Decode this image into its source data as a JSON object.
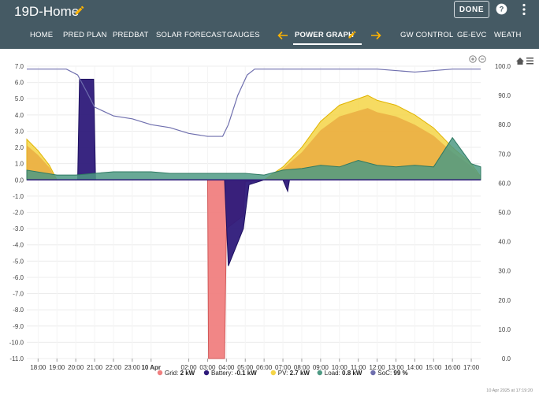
{
  "app": {
    "title": "19D-Home",
    "done_label": "DONE"
  },
  "tabs": [
    "HOME",
    "PRED PLAN",
    "PREDBAT",
    "SOLAR FORECAST",
    "GAUGES",
    "POWER GRAPH",
    "GW CONTROL",
    "GE-EVC",
    "WEATH"
  ],
  "active_tab": "POWER GRAPH",
  "icons": {
    "title_edit": "pencil-icon",
    "help": "help-circle-icon",
    "menu": "more-vert-icon",
    "tab_prev": "arrow-left-icon",
    "tab_next": "arrow-right-icon",
    "zoom_in": "zoom-in-icon",
    "zoom_out": "zoom-out-icon",
    "reset": "home-icon",
    "chart_menu": "hamburger-icon"
  },
  "colors": {
    "header_bg": "#455a64",
    "tab_accent": "#ffb300",
    "grid": "#f08080",
    "battery": "#2e1a7a",
    "pv": "#f5d547",
    "pv_dark": "#e8a43c",
    "load": "#4e9a84",
    "soc": "#6f6fae"
  },
  "chart_data": {
    "type": "area",
    "x_tick_labels": [
      "18:00",
      "19:00",
      "20:00",
      "21:00",
      "22:00",
      "23:00",
      "10 Apr",
      "02:00",
      "03:00",
      "04:00",
      "05:00",
      "06:00",
      "07:00",
      "08:00",
      "09:00",
      "10:00",
      "11:00",
      "12:00",
      "13:00",
      "14:00",
      "15:00",
      "16:00",
      "17:00"
    ],
    "y_left": {
      "min": -11,
      "max": 7,
      "unit": "kW",
      "ticks": [
        "7.0",
        "6.0",
        "5.0",
        "4.0",
        "3.0",
        "2.0",
        "1.0",
        "0.0",
        "-1.0",
        "-2.0",
        "-3.0",
        "-4.0",
        "-5.0",
        "-6.0",
        "-7.0",
        "-8.0",
        "-9.0",
        "-10.0",
        "-11.0"
      ]
    },
    "y_right": {
      "min": 0,
      "max": 100,
      "unit": "%",
      "ticks": [
        "100.0",
        "90.0",
        "80.0",
        "70.0",
        "60.0",
        "50.0",
        "40.0",
        "30.0",
        "20.0",
        "10.0",
        "0.0"
      ]
    },
    "series": [
      {
        "name": "Grid",
        "unit": "kW",
        "x": [
          17.4,
          19,
          20,
          21,
          22,
          23,
          24,
          25,
          26,
          27,
          27.05,
          27.9,
          28,
          28.9,
          29,
          30,
          31,
          32,
          33,
          34,
          35,
          36,
          37,
          38,
          39,
          40,
          41,
          41.5
        ],
        "values": [
          0,
          0,
          0,
          0,
          0,
          0,
          0,
          0,
          0,
          0,
          -11,
          -11,
          -3,
          -2.2,
          -0.1,
          0,
          0,
          0,
          0,
          0,
          0,
          0,
          0,
          0,
          0,
          0,
          0,
          0
        ]
      },
      {
        "name": "Battery",
        "unit": "kW",
        "x": [
          17.4,
          20.1,
          20.2,
          20.95,
          21.05,
          24,
          27.9,
          28.1,
          28.9,
          29.2,
          30,
          31,
          31.25,
          31.35,
          32,
          33,
          34,
          35,
          36,
          37,
          38,
          39,
          40,
          41.5
        ],
        "values": [
          0,
          0,
          6.2,
          6.2,
          0,
          0,
          0,
          -5.3,
          -3.0,
          -0.3,
          0,
          0,
          -0.7,
          0,
          0,
          0,
          0,
          0,
          0,
          0,
          0,
          0,
          0,
          0
        ]
      },
      {
        "name": "PV",
        "unit": "kW",
        "x": [
          17.4,
          18,
          18.6,
          19,
          30,
          31,
          32,
          33,
          34,
          35,
          35.5,
          36,
          37,
          38,
          39,
          40,
          41,
          41.5
        ],
        "values": [
          2.5,
          1.8,
          0.9,
          0,
          0,
          0.8,
          2.0,
          3.6,
          4.6,
          5.0,
          5.2,
          4.9,
          4.6,
          4.0,
          3.2,
          2.0,
          1.0,
          0.2
        ]
      },
      {
        "name": "Load",
        "unit": "kW",
        "x": [
          17.4,
          19,
          20,
          21,
          22,
          23,
          24,
          25,
          26,
          27,
          28,
          29,
          30,
          31,
          32,
          33,
          34,
          35,
          36,
          37,
          38,
          39,
          40,
          41,
          41.5
        ],
        "values": [
          0.6,
          0.3,
          0.3,
          0.4,
          0.5,
          0.5,
          0.5,
          0.4,
          0.4,
          0.4,
          0.4,
          0.4,
          0.3,
          0.6,
          0.7,
          0.9,
          0.8,
          1.2,
          0.9,
          0.8,
          0.9,
          0.8,
          2.6,
          1.0,
          0.8
        ]
      },
      {
        "name": "SoC",
        "unit": "%",
        "x": [
          17.4,
          19.5,
          20.1,
          20.6,
          21.0,
          22.0,
          23.0,
          24.0,
          25.0,
          26.0,
          27.0,
          27.8,
          28.1,
          28.6,
          29.1,
          29.5,
          30,
          32,
          34,
          36,
          38,
          40,
          41.5
        ],
        "values": [
          99,
          99,
          97,
          91,
          86,
          83,
          82,
          80,
          79,
          77,
          76,
          76,
          80,
          90,
          97,
          99,
          99,
          99,
          99,
          99,
          98,
          99,
          99
        ]
      }
    ],
    "legend_position": "bottom",
    "legend": [
      {
        "name": "Grid",
        "value": "2 kW"
      },
      {
        "name": "Battery",
        "value": "-0.1 kW"
      },
      {
        "name": "PV",
        "value": "2.7 kW"
      },
      {
        "name": "Load",
        "value": "0.8 kW"
      },
      {
        "name": "SoC",
        "value": "99 %"
      }
    ],
    "timestamp": "10 Apr 2025 at 17:19:20"
  }
}
